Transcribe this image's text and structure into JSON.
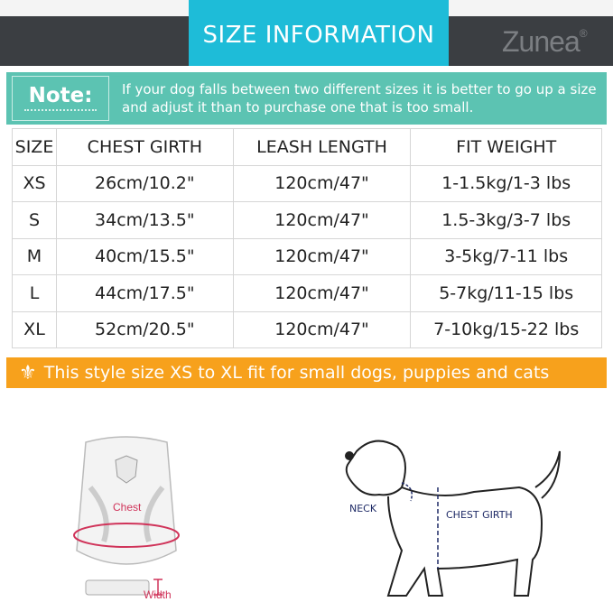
{
  "header": {
    "title": "SIZE INFORMATION",
    "brand": "Zunea",
    "registered": "®"
  },
  "note": {
    "label": "Note:",
    "text_line1": "If your dog falls between two different sizes it is better to go up a size",
    "text_line2": "and adjust it than to purchase one that is too small."
  },
  "table": {
    "headers": [
      "SIZE",
      "CHEST GIRTH",
      "LEASH LENGTH",
      "FIT WEIGHT"
    ],
    "rows": [
      [
        "XS",
        "26cm/10.2\"",
        "120cm/47\"",
        "1-1.5kg/1-3 lbs"
      ],
      [
        "S",
        "34cm/13.5\"",
        "120cm/47\"",
        "1.5-3kg/3-7 lbs"
      ],
      [
        "M",
        "40cm/15.5\"",
        "120cm/47\"",
        "3-5kg/7-11 lbs"
      ],
      [
        "L",
        "44cm/17.5\"",
        "120cm/47\"",
        "5-7kg/11-15 lbs"
      ],
      [
        "XL",
        "52cm/20.5\"",
        "120cm/47\"",
        "7-10kg/15-22 lbs"
      ]
    ]
  },
  "banner": {
    "icon": "fleur-de-lis-icon",
    "text": "This style size XS to  XL fit for small dogs, puppies and cats"
  },
  "harness": {
    "chest_label": "Chest",
    "width_label": "Width"
  },
  "dog": {
    "neck_label": "NECK",
    "chest_label": "CHEST GIRTH"
  },
  "colors": {
    "title_bg": "#1ebcd8",
    "dark_bar": "#3b3e42",
    "note_bg": "#5cc3b2",
    "banner_bg": "#f7a11c",
    "accent_red": "#d0345a",
    "navy": "#1e2a66"
  }
}
